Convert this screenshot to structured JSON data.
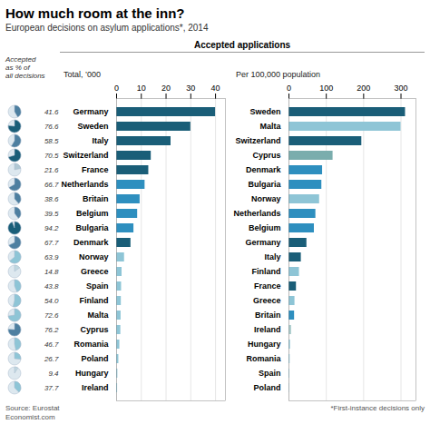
{
  "title": "How much room at the inn?",
  "subtitle": "European decisions on asylum applications*, 2014",
  "annotations": [
    "Accepted applications",
    "Source: Eurostat",
    "*First-instance decisions only",
    "Economist.com"
  ],
  "chart_data": [
    {
      "type": "pies",
      "title": "Accepted\nas % of\nall decisions",
      "values": [
        41.6,
        76.6,
        58.5,
        70.5,
        21.6,
        66.7,
        38.6,
        39.5,
        94.2,
        67.7,
        63.9,
        14.8,
        43.8,
        54.0,
        72.6,
        76.2,
        46.7,
        26.7,
        9.4,
        37.7
      ],
      "value_labels": [
        "41.6",
        "76.6",
        "58.5",
        "70.5",
        "21.6",
        "66.7",
        "38.6",
        "39.5",
        "94.2",
        "67.7",
        "63.9",
        "14.8",
        "43.8",
        "54.0",
        "72.6",
        "76.2",
        "46.7",
        "26.7",
        "9.4",
        "37.7"
      ],
      "colors": [
        "#4d7fa0",
        "#1a5e78",
        "#4d7fa0",
        "#1a5e78",
        "#b0c8d4",
        "#4d7fa0",
        "#4d7fa0",
        "#4d7fa0",
        "#1a5e78",
        "#4d7fa0",
        "#8ec5d6",
        "#c0d8e0",
        "#8ec5d6",
        "#8ec5d6",
        "#8ec5d6",
        "#4d7fa0",
        "#8ec5d6",
        "#8ec5d6",
        "#c0d8e0",
        "#8ec5d6"
      ],
      "data_labels": true
    },
    {
      "type": "bar",
      "orientation": "horizontal",
      "title": "Total, ’000",
      "categories": [
        "Germany",
        "Sweden",
        "Italy",
        "Switzerland",
        "France",
        "Netherlands",
        "Britain",
        "Belgium",
        "Bulgaria",
        "Denmark",
        "Norway",
        "Greece",
        "Spain",
        "Finland",
        "Malta",
        "Cyprus",
        "Romania",
        "Poland",
        "Hungary",
        "Ireland"
      ],
      "values": [
        40.0,
        30.0,
        22.0,
        14.0,
        13.0,
        11.5,
        9.5,
        8.5,
        7.0,
        5.8,
        3.2,
        2.2,
        2.0,
        1.9,
        1.8,
        1.7,
        1.3,
        0.9,
        0.5,
        0.4
      ],
      "colors": [
        "#1a5e78",
        "#1a5e78",
        "#1a5e78",
        "#1a5e78",
        "#1a5e78",
        "#2e8fbf",
        "#2e8fbf",
        "#2e8fbf",
        "#2e8fbf",
        "#1a5e78",
        "#8ec5d6",
        "#8ec5d6",
        "#8ec5d6",
        "#8ec5d6",
        "#8ec5d6",
        "#8ec5d6",
        "#8ec5d6",
        "#8ec5d6",
        "#8ec5d6",
        "#8ec5d6"
      ],
      "xlim": [
        0,
        44
      ],
      "xticks": [
        0,
        10,
        20,
        30,
        40
      ],
      "grid": true
    },
    {
      "type": "bar",
      "orientation": "horizontal",
      "title": "Per 100,000 population",
      "categories": [
        "Sweden",
        "Malta",
        "Switzerland",
        "Cyprus",
        "Denmark",
        "Bulgaria",
        "Norway",
        "Netherlands",
        "Belgium",
        "Germany",
        "Italy",
        "Finland",
        "France",
        "Greece",
        "Britain",
        "Ireland",
        "Hungary",
        "Romania",
        "Spain",
        "Poland"
      ],
      "values": [
        312,
        300,
        195,
        118,
        90,
        88,
        82,
        72,
        68,
        48,
        33,
        28,
        20,
        16,
        15,
        7,
        4,
        3,
        2,
        1
      ],
      "colors": [
        "#1a5e78",
        "#8ec5d6",
        "#1a5e78",
        "#7aadad",
        "#2e8fbf",
        "#2e8fbf",
        "#8ec5d6",
        "#2e8fbf",
        "#2e8fbf",
        "#1a5e78",
        "#1a5e78",
        "#8ec5d6",
        "#1a5e78",
        "#8ec5d6",
        "#2e8fbf",
        "#aacccc",
        "#8ec5d6",
        "#8ec5d6",
        "#8ec5d6",
        "#8ec5d6"
      ],
      "xlim": [
        0,
        340
      ],
      "xticks": [
        0,
        100,
        200,
        300
      ],
      "grid": true
    }
  ]
}
